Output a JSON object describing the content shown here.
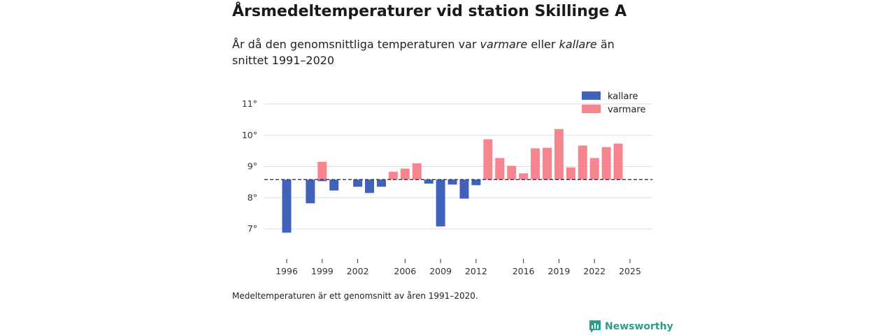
{
  "header": {
    "title": "Årsmedeltemperaturer vid station Skillinge A",
    "subtitle_parts": [
      "År då den genomsnittliga temperaturen var ",
      "varmare",
      " eller ",
      "kallare",
      " än snittet 1991–2020"
    ]
  },
  "footer": {
    "note": "Medeltemperaturen är ett genomsnitt av åren 1991–2020.",
    "brand": "Newsworthy"
  },
  "colors": {
    "kallare": "#4062bb",
    "varmare": "#f7858f",
    "brand": "#2a9d8f"
  },
  "chart_data": {
    "type": "bar",
    "title": "Årsmedeltemperaturer vid station Skillinge A",
    "baseline": 8.58,
    "baseline_style": "dashed",
    "ylim": [
      6.2,
      11.3
    ],
    "yticks": [
      7,
      8,
      9,
      10,
      11
    ],
    "ytick_labels": [
      "7°",
      "8°",
      "9°",
      "10°",
      "11°"
    ],
    "xticks": [
      1996,
      1999,
      2002,
      2006,
      2009,
      2012,
      2016,
      2019,
      2022,
      2025
    ],
    "legend": {
      "position": "top-right",
      "entries": [
        "kallare",
        "varmare"
      ]
    },
    "series": [
      {
        "name": "kallare",
        "years": [
          1996,
          1998,
          1999,
          2000,
          2002,
          2003,
          2004,
          2008,
          2009,
          2010,
          2011,
          2012
        ],
        "values": [
          6.88,
          7.82,
          8.53,
          8.23,
          8.35,
          8.15,
          8.35,
          8.45,
          7.08,
          8.42,
          7.97,
          8.4
        ]
      },
      {
        "name": "varmare",
        "years": [
          1999,
          2005,
          2006,
          2007,
          2013,
          2014,
          2015,
          2016,
          2017,
          2018,
          2019,
          2020,
          2021,
          2022,
          2023,
          2024
        ],
        "values": [
          9.15,
          8.83,
          8.93,
          9.1,
          9.87,
          9.27,
          9.02,
          8.78,
          9.58,
          9.6,
          10.2,
          8.97,
          9.67,
          9.27,
          9.62,
          9.73
        ]
      }
    ]
  }
}
